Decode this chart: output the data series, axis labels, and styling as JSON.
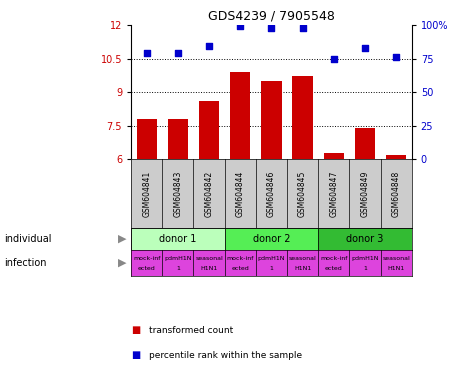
{
  "title": "GDS4239 / 7905548",
  "samples": [
    "GSM604841",
    "GSM604843",
    "GSM604842",
    "GSM604844",
    "GSM604846",
    "GSM604845",
    "GSM604847",
    "GSM604849",
    "GSM604848"
  ],
  "bar_values": [
    7.8,
    7.8,
    8.6,
    9.9,
    9.5,
    9.7,
    6.3,
    7.4,
    6.2
  ],
  "scatter_values": [
    79,
    79,
    84,
    99,
    98,
    98,
    75,
    83,
    76
  ],
  "ylim_left": [
    6,
    12
  ],
  "ylim_right": [
    0,
    100
  ],
  "yticks_left": [
    6,
    7.5,
    9,
    10.5,
    12
  ],
  "yticks_right": [
    0,
    25,
    50,
    75,
    100
  ],
  "ytick_labels_left": [
    "6",
    "7.5",
    "9",
    "10.5",
    "12"
  ],
  "ytick_labels_right": [
    "0",
    "25",
    "50",
    "75",
    "100%"
  ],
  "bar_color": "#cc0000",
  "scatter_color": "#0000cc",
  "donor_colors": [
    "#bbffbb",
    "#55ee55",
    "#33bb33"
  ],
  "infection_color": "#dd44dd",
  "individual_label": "individual",
  "infection_label": "infection",
  "legend_bar_label": "transformed count",
  "legend_scatter_label": "percentile rank within the sample",
  "hline_values": [
    7.5,
    9.0,
    10.5
  ],
  "sample_bg": "#cccccc",
  "background_color": "#ffffff"
}
